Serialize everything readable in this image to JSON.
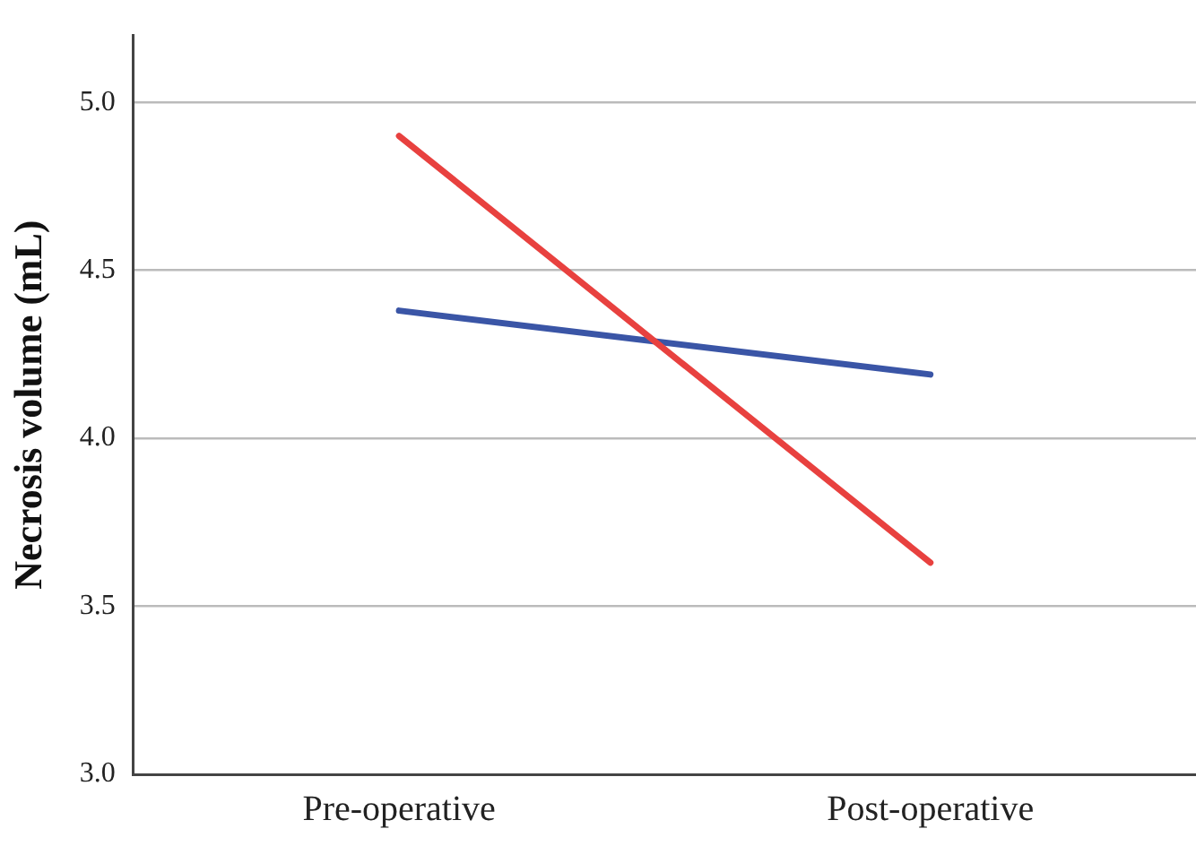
{
  "chart_data": {
    "type": "line",
    "ylabel": "Necrosis volume (mL)",
    "categories": [
      "Pre-operative",
      "Post-operative"
    ],
    "series": [
      {
        "color": "#e8413f",
        "values": [
          4.9,
          3.63
        ]
      },
      {
        "color": "#3a55a6",
        "values": [
          4.38,
          4.19
        ]
      }
    ],
    "ylim": [
      3.0,
      5.2
    ],
    "yticks": [
      {
        "value": 3,
        "label": "3.0"
      },
      {
        "value": 3.5,
        "label": "3.5"
      },
      {
        "value": 4,
        "label": "4.0"
      },
      {
        "value": 4.5,
        "label": "4.5"
      },
      {
        "value": 5,
        "label": "5.0"
      }
    ],
    "grid": "y",
    "legend": false,
    "marker": "none",
    "line_style": "solid"
  }
}
